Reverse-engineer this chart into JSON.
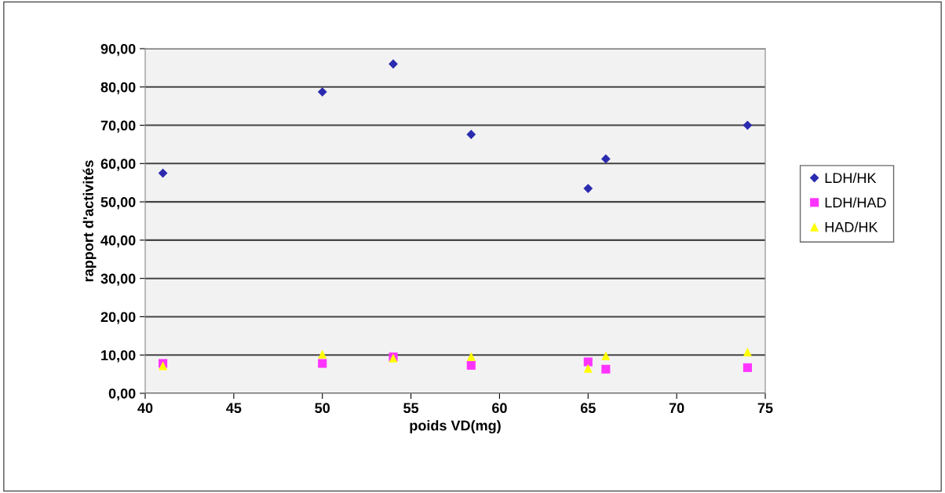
{
  "chart_data": {
    "type": "scatter",
    "xlabel": "poids VD(mg)",
    "ylabel": "rapport d'activités",
    "x": [
      41,
      50,
      54,
      58.4,
      65,
      66,
      74
    ],
    "series": [
      {
        "name": "LDH/HK",
        "color": "#2b2bb0",
        "marker": "diamond",
        "values": [
          57.5,
          78.7,
          86,
          67.6,
          53.5,
          61.2,
          70
        ]
      },
      {
        "name": "LDH/HAD",
        "color": "#ff33ff",
        "marker": "square",
        "values": [
          7.8,
          7.8,
          9.5,
          7.3,
          8.2,
          6.3,
          6.7
        ]
      },
      {
        "name": "HAD/HK",
        "color": "#ffff00",
        "marker": "triangle",
        "values": [
          7.2,
          10.2,
          9.2,
          9.6,
          6.5,
          9.8,
          10.8
        ]
      }
    ],
    "xlim": [
      40,
      75
    ],
    "xticks": [
      40,
      45,
      50,
      55,
      60,
      65,
      70,
      75
    ],
    "ylim": [
      0,
      90
    ],
    "yticks": [
      {
        "value": 0,
        "label": "0,00"
      },
      {
        "value": 10,
        "label": "10,00"
      },
      {
        "value": 20,
        "label": "20,00"
      },
      {
        "value": 30,
        "label": "30,00"
      },
      {
        "value": 40,
        "label": "40,00"
      },
      {
        "value": 50,
        "label": "50,00"
      },
      {
        "value": 60,
        "label": "60,00"
      },
      {
        "value": 70,
        "label": "70,00"
      },
      {
        "value": 80,
        "label": "80,00"
      },
      {
        "value": 90,
        "label": "90,00"
      }
    ],
    "grid": "y",
    "legend": "right"
  }
}
